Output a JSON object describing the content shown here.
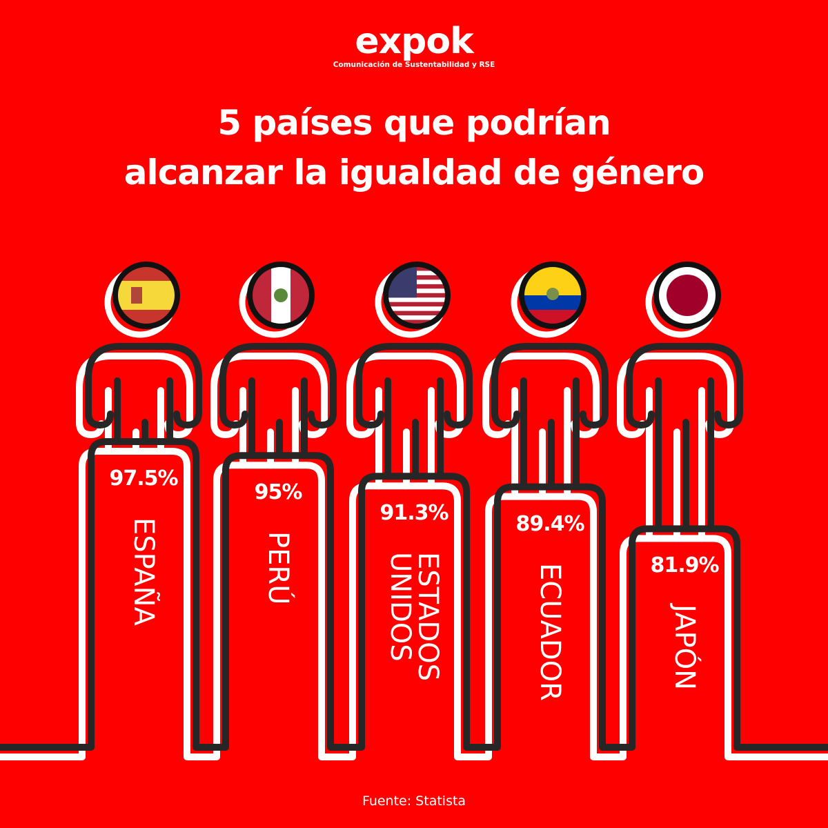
{
  "logo": {
    "name": "expok",
    "tagline": "Comunicación de Sustentabilidad y RSE"
  },
  "title": {
    "line1": "5 países que podrían",
    "line2": "alcanzar la igualdad de género"
  },
  "source": "Fuente: Statista",
  "colors": {
    "background": "#fe0000",
    "outline": "#262626",
    "offset_line": "#ffffff"
  },
  "chart_data": {
    "type": "bar",
    "title": "5 países que podrían alcanzar la igualdad de género",
    "categories": [
      "ESPAÑA",
      "PERÚ",
      "ESTADOS UNIDOS",
      "ECUADOR",
      "JAPÓN"
    ],
    "values": [
      97.5,
      95,
      91.3,
      89.4,
      81.9
    ],
    "labels": [
      "97.5%",
      "95%",
      "91.3%",
      "89.4%",
      "81.9%"
    ],
    "flags": [
      "spain-flag",
      "peru-flag",
      "usa-flag",
      "ecuador-flag",
      "japan-flag"
    ],
    "unit": "%"
  },
  "countries": [
    {
      "name": "ESPAÑA",
      "pct": "97.5%"
    },
    {
      "name": "PERÚ",
      "pct": "95%"
    },
    {
      "name": "ESTADOS\nUNIDOS",
      "pct": "91.3%"
    },
    {
      "name": "ECUADOR",
      "pct": "89.4%"
    },
    {
      "name": "JAPÓN",
      "pct": "81.9%"
    }
  ]
}
